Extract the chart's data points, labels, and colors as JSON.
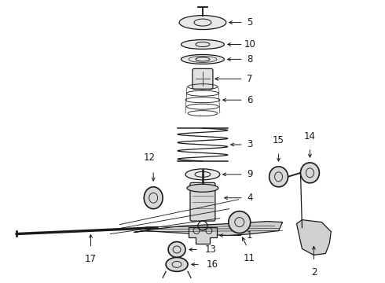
{
  "background_color": "#ffffff",
  "line_color": "#1a1a1a",
  "fig_width": 4.9,
  "fig_height": 3.6,
  "dpi": 100,
  "label_font": 8.5,
  "lw": 0.9
}
